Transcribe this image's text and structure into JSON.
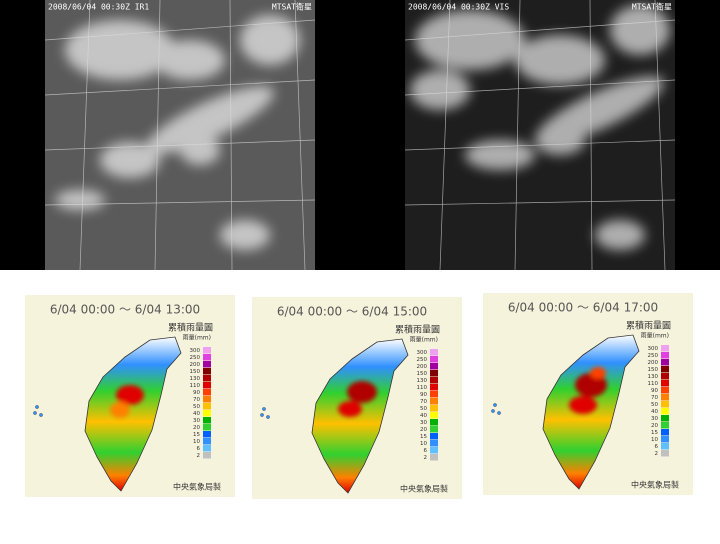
{
  "satellite": [
    {
      "timestamp": "2008/06/04  00:30Z IR1",
      "source": "MTSAT衛星"
    },
    {
      "timestamp": "2008/06/04  00:30Z VIS",
      "source": "MTSAT衛星"
    }
  ],
  "rain_maps": [
    {
      "period": "6/04 00:00 ～ 6/04 13:00"
    },
    {
      "period": "6/04 00:00 ～ 6/04 15:00"
    },
    {
      "period": "6/04 00:00 ～ 6/04 17:00"
    }
  ],
  "legend": {
    "title": "累積雨量圖",
    "unit": "雨量(mm)",
    "levels": [
      300,
      250,
      200,
      150,
      130,
      110,
      90,
      70,
      50,
      40,
      30,
      20,
      15,
      10,
      6,
      2
    ],
    "colors": [
      "#f0a0f0",
      "#e040e0",
      "#a000a0",
      "#800000",
      "#b00000",
      "#e00000",
      "#ff4000",
      "#ff8000",
      "#ffc000",
      "#ffff00",
      "#00b000",
      "#30d030",
      "#0060ff",
      "#3090ff",
      "#60c0ff",
      "#c0c0c0"
    ]
  },
  "credit": "中央氣象局製"
}
